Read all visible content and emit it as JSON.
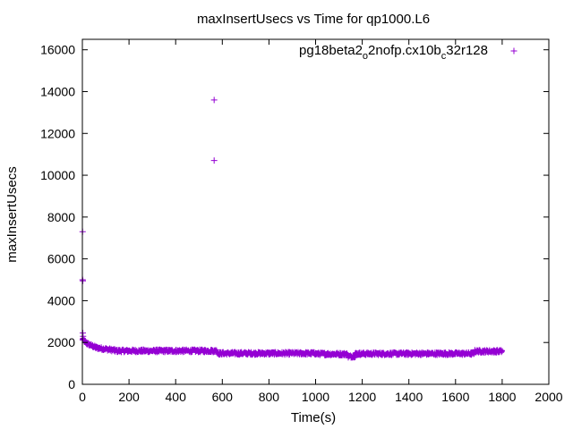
{
  "chart_data": {
    "type": "scatter",
    "title": "maxInsertUsecs vs Time for qp1000.L6",
    "xlabel": "Time(s)",
    "ylabel": "maxInsertUsecs",
    "xlim": [
      0,
      2000
    ],
    "ylim": [
      0,
      16500
    ],
    "x_ticks": [
      0,
      200,
      400,
      600,
      800,
      1000,
      1200,
      1400,
      1600,
      1800,
      2000
    ],
    "y_ticks": [
      0,
      2000,
      4000,
      6000,
      8000,
      10000,
      12000,
      14000,
      16000
    ],
    "x_tick_labels": [
      "0",
      "200",
      "400",
      "600",
      "800",
      "1000",
      "1200",
      "1400",
      "1600",
      "1800",
      "2000"
    ],
    "y_tick_labels": [
      "0",
      "2000",
      "4000",
      "6000",
      "8000",
      "10000",
      "12000",
      "14000",
      "16000"
    ],
    "grid": false,
    "legend_position": "top-right",
    "series": [
      {
        "legend_parts": {
          "a": "pg18beta2",
          "a_sub": "o",
          "b": "2nofp.cx10b",
          "b_sub": "c",
          "c": "32r128"
        },
        "color": "#9400d3",
        "marker": "plus",
        "outliers": [
          {
            "x": 1,
            "y": 7300
          },
          {
            "x": 1,
            "y": 5000
          },
          {
            "x": 2,
            "y": 4950
          },
          {
            "x": 2,
            "y": 2450
          },
          {
            "x": 3,
            "y": 2300
          },
          {
            "x": 565,
            "y": 13600
          },
          {
            "x": 565,
            "y": 10700
          }
        ],
        "segments": [
          {
            "x": [
              0,
              20
            ],
            "y": [
              2150,
              1950
            ]
          },
          {
            "x": [
              20,
              60
            ],
            "y": [
              1950,
              1750
            ]
          },
          {
            "x": [
              60,
              140
            ],
            "y": [
              1750,
              1620
            ]
          },
          {
            "x": [
              140,
              580
            ],
            "y": [
              1600,
              1600
            ]
          },
          {
            "x": [
              580,
              1000
            ],
            "y": [
              1480,
              1480
            ]
          },
          {
            "x": [
              1000,
              1140
            ],
            "y": [
              1460,
              1440
            ]
          },
          {
            "x": [
              1140,
              1170
            ],
            "y": [
              1320,
              1360
            ]
          },
          {
            "x": [
              1170,
              1680
            ],
            "y": [
              1460,
              1470
            ]
          },
          {
            "x": [
              1680,
              1800
            ],
            "y": [
              1580,
              1580
            ]
          }
        ],
        "band_spread": 160,
        "point_step": 3
      }
    ]
  }
}
